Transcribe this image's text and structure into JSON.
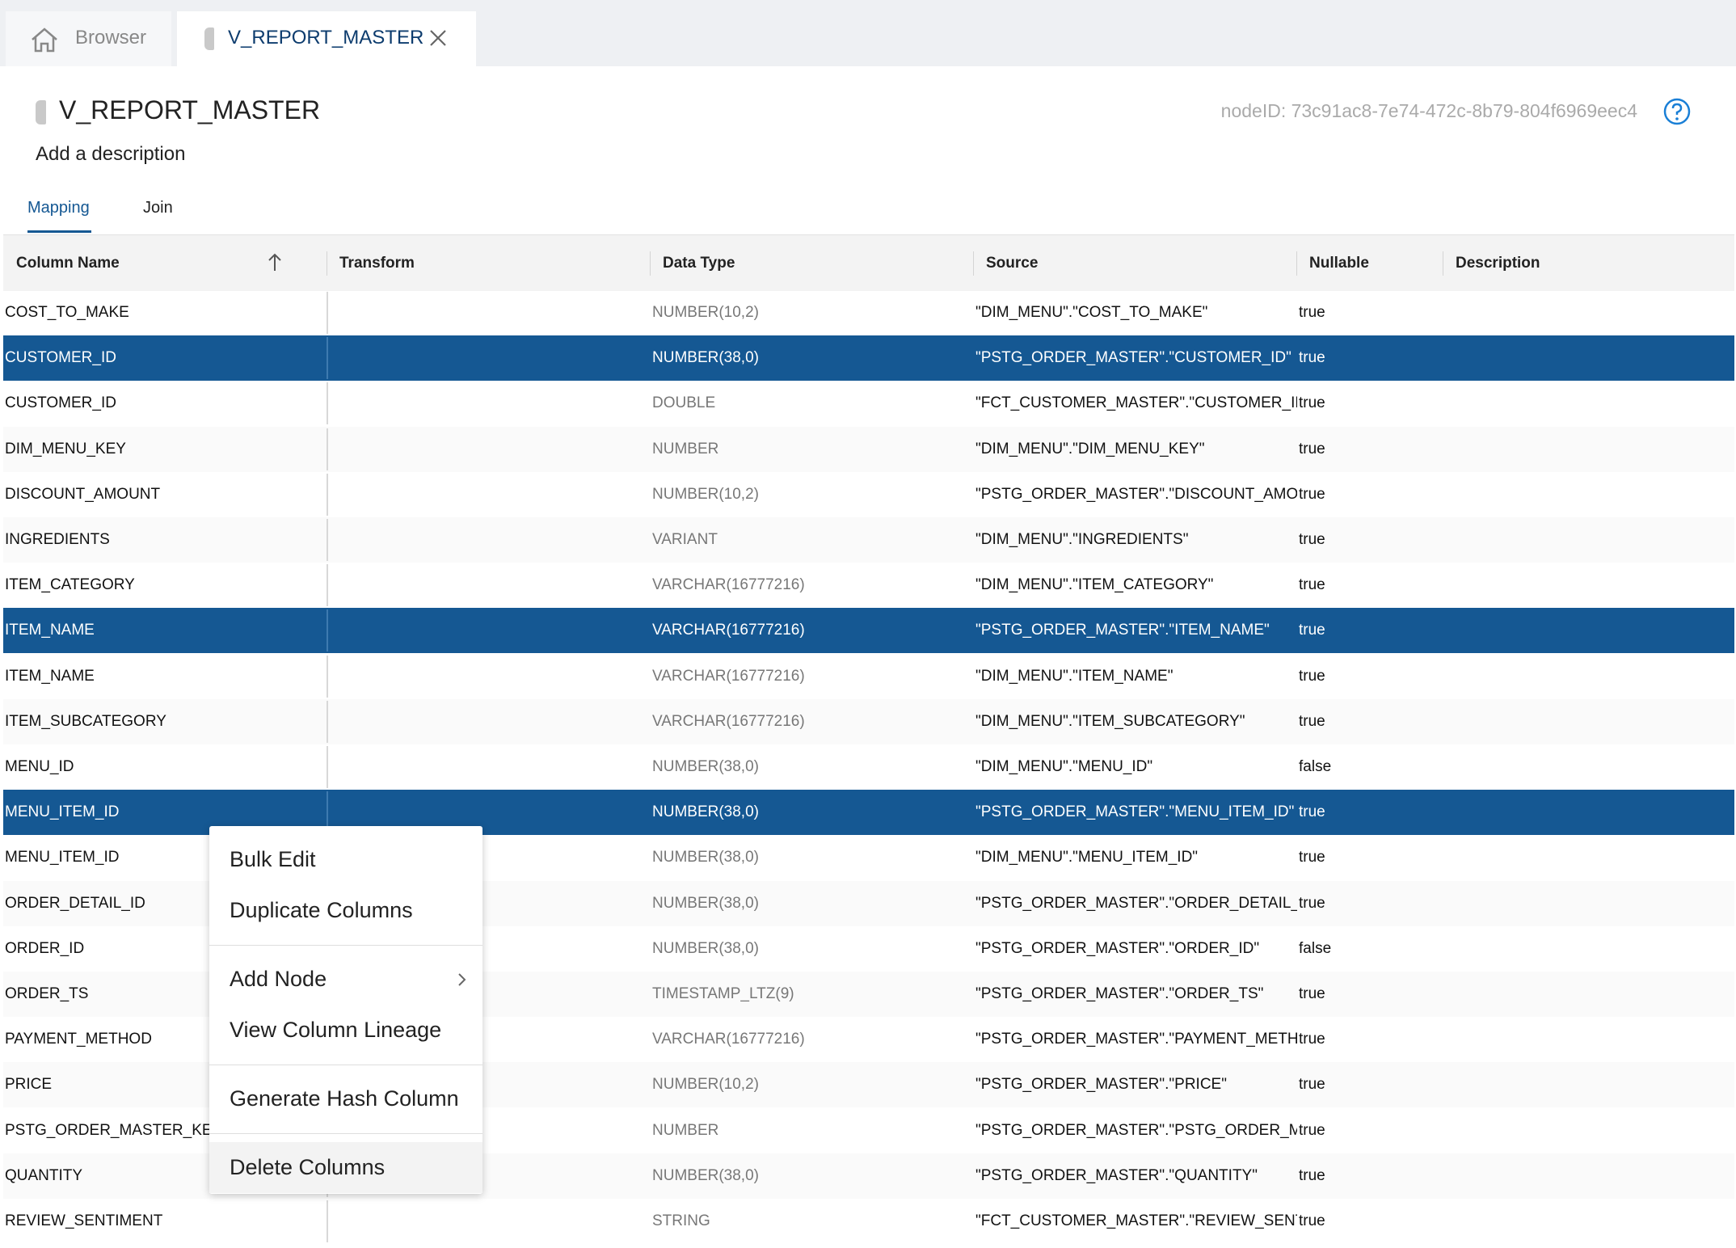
{
  "tabs": {
    "browser": "Browser",
    "active": "V_REPORT_MASTER"
  },
  "header": {
    "title": "V_REPORT_MASTER",
    "node_id": "nodeID: 73c91ac8-7e74-472c-8b79-804f6969eec4",
    "description": "Add a description"
  },
  "subtabs": [
    "Mapping",
    "Join"
  ],
  "table": {
    "columns": [
      "Column Name",
      "Transform",
      "Data Type",
      "Source",
      "Nullable",
      "Description"
    ],
    "rows": [
      {
        "name": "COST_TO_MAKE",
        "type": "NUMBER(10,2)",
        "source": "\"DIM_MENU\".\"COST_TO_MAKE\"",
        "nullable": "true",
        "selected": false
      },
      {
        "name": "CUSTOMER_ID",
        "type": "NUMBER(38,0)",
        "source": "\"PSTG_ORDER_MASTER\".\"CUSTOMER_ID\"",
        "nullable": "true",
        "selected": true
      },
      {
        "name": "CUSTOMER_ID",
        "type": "DOUBLE",
        "source": "\"FCT_CUSTOMER_MASTER\".\"CUSTOMER_ID\"",
        "nullable": "true",
        "selected": false
      },
      {
        "name": "DIM_MENU_KEY",
        "type": "NUMBER",
        "source": "\"DIM_MENU\".\"DIM_MENU_KEY\"",
        "nullable": "true",
        "selected": false
      },
      {
        "name": "DISCOUNT_AMOUNT",
        "type": "NUMBER(10,2)",
        "source": "\"PSTG_ORDER_MASTER\".\"DISCOUNT_AMOU",
        "nullable": "true",
        "selected": false
      },
      {
        "name": "INGREDIENTS",
        "type": "VARIANT",
        "source": "\"DIM_MENU\".\"INGREDIENTS\"",
        "nullable": "true",
        "selected": false
      },
      {
        "name": "ITEM_CATEGORY",
        "type": "VARCHAR(16777216)",
        "source": "\"DIM_MENU\".\"ITEM_CATEGORY\"",
        "nullable": "true",
        "selected": false
      },
      {
        "name": "ITEM_NAME",
        "type": "VARCHAR(16777216)",
        "source": "\"PSTG_ORDER_MASTER\".\"ITEM_NAME\"",
        "nullable": "true",
        "selected": true
      },
      {
        "name": "ITEM_NAME",
        "type": "VARCHAR(16777216)",
        "source": "\"DIM_MENU\".\"ITEM_NAME\"",
        "nullable": "true",
        "selected": false
      },
      {
        "name": "ITEM_SUBCATEGORY",
        "type": "VARCHAR(16777216)",
        "source": "\"DIM_MENU\".\"ITEM_SUBCATEGORY\"",
        "nullable": "true",
        "selected": false
      },
      {
        "name": "MENU_ID",
        "type": "NUMBER(38,0)",
        "source": "\"DIM_MENU\".\"MENU_ID\"",
        "nullable": "false",
        "selected": false
      },
      {
        "name": "MENU_ITEM_ID",
        "type": "NUMBER(38,0)",
        "source": "\"PSTG_ORDER_MASTER\".\"MENU_ITEM_ID\"",
        "nullable": "true",
        "selected": true
      },
      {
        "name": "MENU_ITEM_ID",
        "type": "NUMBER(38,0)",
        "source": "\"DIM_MENU\".\"MENU_ITEM_ID\"",
        "nullable": "true",
        "selected": false
      },
      {
        "name": "ORDER_DETAIL_ID",
        "type": "NUMBER(38,0)",
        "source": "\"PSTG_ORDER_MASTER\".\"ORDER_DETAIL_ID",
        "nullable": "true",
        "selected": false
      },
      {
        "name": "ORDER_ID",
        "type": "NUMBER(38,0)",
        "source": "\"PSTG_ORDER_MASTER\".\"ORDER_ID\"",
        "nullable": "false",
        "selected": false
      },
      {
        "name": "ORDER_TS",
        "type": "TIMESTAMP_LTZ(9)",
        "source": "\"PSTG_ORDER_MASTER\".\"ORDER_TS\"",
        "nullable": "true",
        "selected": false
      },
      {
        "name": "PAYMENT_METHOD",
        "type": "VARCHAR(16777216)",
        "source": "\"PSTG_ORDER_MASTER\".\"PAYMENT_METH",
        "nullable": "true",
        "selected": false
      },
      {
        "name": "PRICE",
        "type": "NUMBER(10,2)",
        "source": "\"PSTG_ORDER_MASTER\".\"PRICE\"",
        "nullable": "true",
        "selected": false
      },
      {
        "name": "PSTG_ORDER_MASTER_KEY",
        "type": "NUMBER",
        "source": "\"PSTG_ORDER_MASTER\".\"PSTG_ORDER_MA",
        "nullable": "true",
        "selected": false
      },
      {
        "name": "QUANTITY",
        "type": "NUMBER(38,0)",
        "source": "\"PSTG_ORDER_MASTER\".\"QUANTITY\"",
        "nullable": "true",
        "selected": false
      },
      {
        "name": "REVIEW_SENTIMENT",
        "type": "STRING",
        "source": "\"FCT_CUSTOMER_MASTER\".\"REVIEW_SENTI",
        "nullable": "true",
        "selected": false
      }
    ]
  },
  "context_menu": {
    "groups": [
      [
        "Bulk Edit",
        "Duplicate Columns"
      ],
      [
        "Add Node",
        "View Column Lineage"
      ],
      [
        "Generate Hash Column"
      ],
      [
        "Delete Columns"
      ]
    ]
  }
}
